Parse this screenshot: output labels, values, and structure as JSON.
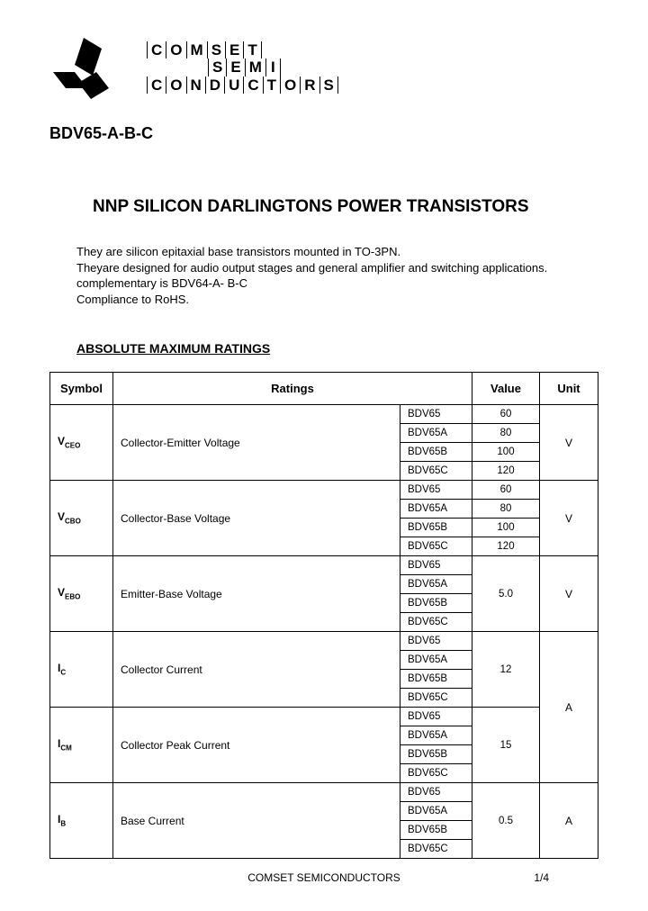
{
  "company": {
    "row1": [
      "C",
      "O",
      "M",
      "S",
      "E",
      "T"
    ],
    "row2_prefix_spaces": 4,
    "row2": [
      "S",
      "E",
      "M",
      "I"
    ],
    "row3": [
      "C",
      "O",
      "N",
      "D",
      "U",
      "C",
      "T",
      "O",
      "R",
      "S"
    ]
  },
  "part_number": "BDV65-A-B-C",
  "title": "NNP SILICON DARLINGTONS POWER TRANSISTORS",
  "description": {
    "line1": "They are silicon epitaxial base transistors mounted in TO-3PN.",
    "line2": "Theyare designed for audio output stages and general amplifier and switching applications.",
    "line3": "complementary is BDV64-A- B-C",
    "line4": "Compliance to RoHS."
  },
  "section_title": "ABSOLUTE MAXIMUM RATINGS",
  "table": {
    "headers": {
      "symbol": "Symbol",
      "ratings": "Ratings",
      "value": "Value",
      "unit": "Unit"
    },
    "groups": [
      {
        "symbol_main": "V",
        "symbol_sub": "CEO",
        "rating": "Collector-Emitter Voltage",
        "rows": [
          {
            "variant": "BDV65",
            "value": "60"
          },
          {
            "variant": "BDV65A",
            "value": "80"
          },
          {
            "variant": "BDV65B",
            "value": "100"
          },
          {
            "variant": "BDV65C",
            "value": "120"
          }
        ],
        "unit": "V",
        "value_span": 1
      },
      {
        "symbol_main": "V",
        "symbol_sub": "CBO",
        "rating": "Collector-Base Voltage",
        "rows": [
          {
            "variant": "BDV65",
            "value": "60"
          },
          {
            "variant": "BDV65A",
            "value": "80"
          },
          {
            "variant": "BDV65B",
            "value": "100"
          },
          {
            "variant": "BDV65C",
            "value": "120"
          }
        ],
        "unit": "V",
        "value_span": 1
      },
      {
        "symbol_main": "V",
        "symbol_sub": "EBO",
        "rating": "Emitter-Base Voltage",
        "rows": [
          {
            "variant": "BDV65"
          },
          {
            "variant": "BDV65A"
          },
          {
            "variant": "BDV65B"
          },
          {
            "variant": "BDV65C"
          }
        ],
        "merged_value": "5.0",
        "unit": "V",
        "value_span": 4
      },
      {
        "symbol_main": "I",
        "symbol_sub": "C",
        "rating": "Collector Current",
        "rows": [
          {
            "variant": "BDV65"
          },
          {
            "variant": "BDV65A"
          },
          {
            "variant": "BDV65B"
          },
          {
            "variant": "BDV65C"
          }
        ],
        "merged_value": "12",
        "unit_shared": "A",
        "unit_shared_span": 8,
        "value_span": 4
      },
      {
        "symbol_main": "I",
        "symbol_sub": "CM",
        "rating": "Collector Peak Current",
        "rows": [
          {
            "variant": "BDV65"
          },
          {
            "variant": "BDV65A"
          },
          {
            "variant": "BDV65B"
          },
          {
            "variant": "BDV65C"
          }
        ],
        "merged_value": "15",
        "value_span": 4
      },
      {
        "symbol_main": "I",
        "symbol_sub": "B",
        "rating": "Base Current",
        "rows": [
          {
            "variant": "BDV65"
          },
          {
            "variant": "BDV65A"
          },
          {
            "variant": "BDV65B"
          },
          {
            "variant": "BDV65C"
          }
        ],
        "merged_value": "0.5",
        "unit": "A",
        "value_span": 4
      }
    ]
  },
  "footer": {
    "company": "COMSET SEMICONDUCTORS",
    "page": "1/4"
  }
}
